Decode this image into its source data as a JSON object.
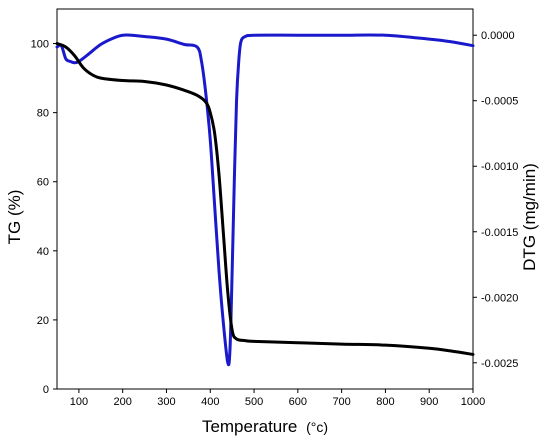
{
  "chart_data": {
    "type": "line",
    "title": "",
    "xlabel": "Temperature",
    "xlabel_unit": "(°c)",
    "ylabel_left": "TG (%)",
    "ylabel_right": "DTG (mg/min)",
    "xlim": [
      50,
      1000
    ],
    "ylim_left": [
      0,
      110
    ],
    "ylim_right": [
      -0.0027,
      0.0002
    ],
    "x_ticks": [
      100,
      200,
      300,
      400,
      500,
      600,
      700,
      800,
      900,
      1000
    ],
    "y_left_ticks": [
      0,
      20,
      40,
      60,
      80,
      100
    ],
    "y_right_ticks": [
      "0.0000",
      "-0.0005",
      "-0.0010",
      "-0.0015",
      "-0.0020",
      "-0.0025"
    ],
    "y_right_tick_values": [
      0,
      -0.0005,
      -0.001,
      -0.0015,
      -0.002,
      -0.0025
    ],
    "grid": false,
    "series": [
      {
        "axis": "left",
        "color": "#000000",
        "x": [
          50,
          70,
          90,
          110,
          130,
          150,
          200,
          250,
          300,
          340,
          370,
          390,
          400,
          410,
          420,
          430,
          440,
          450,
          460,
          480,
          500,
          600,
          700,
          800,
          900,
          950,
          1000
        ],
        "y": [
          100,
          99,
          96.5,
          93,
          91,
          90,
          89.3,
          89,
          88,
          86.5,
          85,
          83,
          80,
          74,
          62,
          45,
          28,
          17,
          14.5,
          14,
          13.8,
          13.4,
          13,
          12.7,
          11.8,
          11,
          10
        ]
      },
      {
        "axis": "right",
        "color": "#1a1acc",
        "x": [
          50,
          60,
          70,
          80,
          90,
          100,
          120,
          150,
          180,
          200,
          220,
          250,
          300,
          340,
          370,
          380,
          390,
          400,
          410,
          420,
          430,
          440,
          445,
          450,
          455,
          460,
          465,
          470,
          480,
          500,
          600,
          700,
          800,
          900,
          950,
          1000
        ],
        "y": [
          -9e-05,
          -8e-05,
          -0.00018,
          -0.0002,
          -0.00021,
          -0.0002,
          -0.00015,
          -7e-05,
          -2e-05,
          0,
          0,
          -1e-05,
          -3e-05,
          -7e-05,
          -9e-05,
          -0.0002,
          -0.00045,
          -0.0008,
          -0.0013,
          -0.0018,
          -0.0022,
          -0.0025,
          -0.0024,
          -0.0018,
          -0.0011,
          -0.0005,
          -0.0002,
          -5e-05,
          -1e-05,
          0,
          0,
          0,
          0,
          -3e-05,
          -5e-05,
          -8e-05
        ]
      }
    ]
  }
}
